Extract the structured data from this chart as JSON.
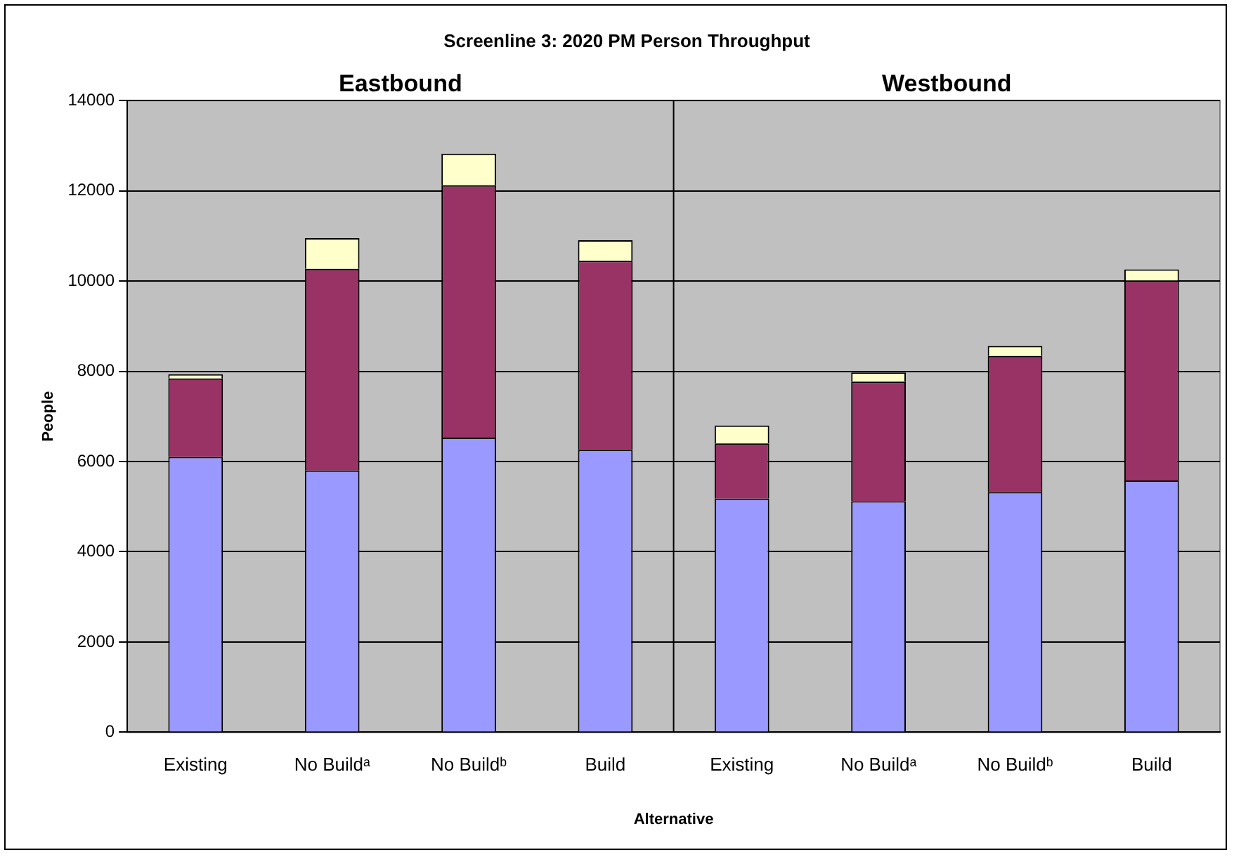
{
  "chart_data": {
    "type": "bar",
    "title": "Screenline 3: 2020 PM Person Throughput",
    "xlabel": "Alternative",
    "ylabel": "People",
    "categories": [
      "Existing",
      "No Buildᵃ",
      "No Buildᵇ",
      "Build",
      "Existing",
      "No Buildᵃ",
      "No Buildᵇ",
      "Build"
    ],
    "series": [
      {
        "color": "#9999ff",
        "values": [
          6100,
          5800,
          6530,
          6260,
          5180,
          5120,
          5325,
          5580
        ]
      },
      {
        "color": "#993366",
        "values": [
          1740,
          4470,
          5595,
          4190,
          1220,
          2650,
          3015,
          4430
        ]
      },
      {
        "color": "#ffffcc",
        "values": [
          95,
          680,
          700,
          455,
          400,
          205,
          220,
          250
        ]
      }
    ],
    "stacked": true,
    "ylim": [
      0,
      14000
    ],
    "yticks": [
      0,
      2000,
      4000,
      6000,
      8000,
      10000,
      12000,
      14000
    ],
    "grid": "y",
    "legend": false,
    "annotations": [
      "Eastbound",
      "Westbound"
    ]
  }
}
